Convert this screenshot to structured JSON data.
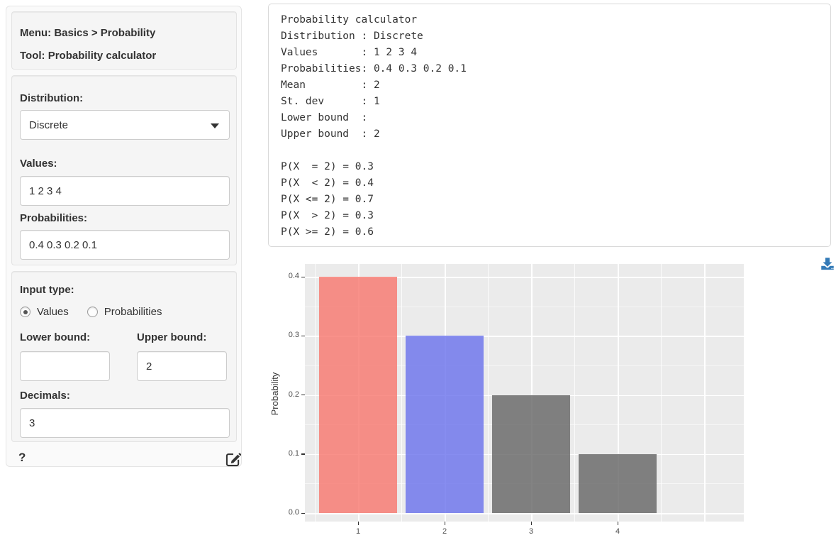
{
  "sidebar": {
    "header": {
      "menu_line": "Menu: Basics > Probability",
      "tool_line": "Tool: Probability calculator"
    },
    "distribution": {
      "label": "Distribution:",
      "selected": "Discrete"
    },
    "values_field": {
      "label": "Values:",
      "value": "1 2 3 4"
    },
    "probabilities_field": {
      "label": "Probabilities:",
      "value": "0.4 0.3 0.2 0.1"
    },
    "input_type": {
      "label": "Input type:",
      "options": [
        {
          "label": "Values",
          "selected": true
        },
        {
          "label": "Probabilities",
          "selected": false
        }
      ]
    },
    "lower_bound": {
      "label": "Lower bound:",
      "value": ""
    },
    "upper_bound": {
      "label": "Upper bound:",
      "value": "2"
    },
    "decimals": {
      "label": "Decimals:",
      "value": "3"
    },
    "footer": {
      "help_label": "?"
    }
  },
  "output": {
    "text": "Probability calculator\nDistribution : Discrete\nValues       : 1 2 3 4\nProbabilities: 0.4 0.3 0.2 0.1\nMean         : 2\nSt. dev      : 1\nLower bound  : \nUpper bound  : 2\n\nP(X  = 2) = 0.3\nP(X  < 2) = 0.4\nP(X <= 2) = 0.7\nP(X  > 2) = 0.3\nP(X >= 2) = 0.6"
  },
  "chart_data": {
    "type": "bar",
    "categories": [
      "1",
      "2",
      "3",
      "4"
    ],
    "values": [
      0.4,
      0.3,
      0.2,
      0.1
    ],
    "bar_colors": [
      "rgba(248,118,109,0.8)",
      "rgba(105,112,236,0.8)",
      "rgba(100,100,100,0.8)",
      "rgba(100,100,100,0.8)"
    ],
    "title": "",
    "xlabel": "",
    "ylabel": "Probability",
    "ylim": [
      0,
      0.4
    ],
    "yticks": [
      0.0,
      0.1,
      0.2,
      0.3,
      0.4
    ],
    "grid": true,
    "legend": "none",
    "panel_bg": "#EBEBEB",
    "accent_color": "#337ab7"
  }
}
